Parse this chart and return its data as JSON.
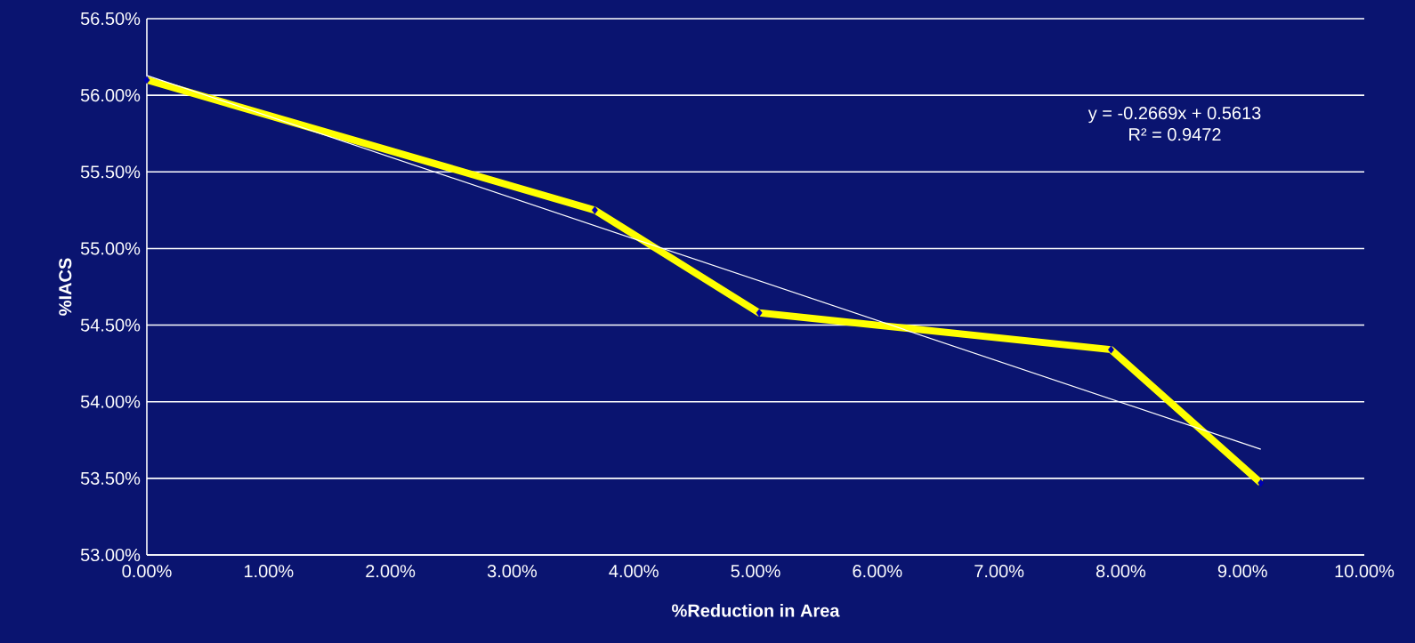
{
  "chart_data": {
    "type": "line",
    "xlabel": "%Reduction in Area",
    "ylabel": "%IACS",
    "annotations": [
      "y = -0.2669x + 0.5613",
      "R² = 0.9472"
    ],
    "series": [
      {
        "color": "#ffff00",
        "x": [
          0,
          3.68,
          5.03,
          7.92,
          9.15
        ],
        "values": [
          56.1,
          55.25,
          54.58,
          54.34,
          53.47
        ],
        "marker": "diamond"
      },
      {
        "type": "line",
        "color": "#ffffff",
        "x": [
          0,
          9.15
        ],
        "values": [
          56.13,
          53.69
        ],
        "marker": "none"
      }
    ],
    "xlim": [
      0,
      10
    ],
    "ylim": [
      53,
      56.5
    ],
    "xticks": [
      {
        "value": 0,
        "label": "0.00%"
      },
      {
        "value": 1,
        "label": "1.00%"
      },
      {
        "value": 2,
        "label": "2.00%"
      },
      {
        "value": 3,
        "label": "3.00%"
      },
      {
        "value": 4,
        "label": "4.00%"
      },
      {
        "value": 5,
        "label": "5.00%"
      },
      {
        "value": 6,
        "label": "6.00%"
      },
      {
        "value": 7,
        "label": "7.00%"
      },
      {
        "value": 8,
        "label": "8.00%"
      },
      {
        "value": 9,
        "label": "9.00%"
      },
      {
        "value": 10,
        "label": "10.00%"
      }
    ],
    "yticks": [
      {
        "value": 53,
        "label": "53.00%"
      },
      {
        "value": 53.5,
        "label": "53.50%"
      },
      {
        "value": 54,
        "label": "54.00%"
      },
      {
        "value": 54.5,
        "label": "54.50%"
      },
      {
        "value": 55,
        "label": "55.00%"
      },
      {
        "value": 55.5,
        "label": "55.50%"
      },
      {
        "value": 56,
        "label": "56.00%"
      },
      {
        "value": 56.5,
        "label": "56.50%"
      }
    ],
    "grid": "y"
  }
}
